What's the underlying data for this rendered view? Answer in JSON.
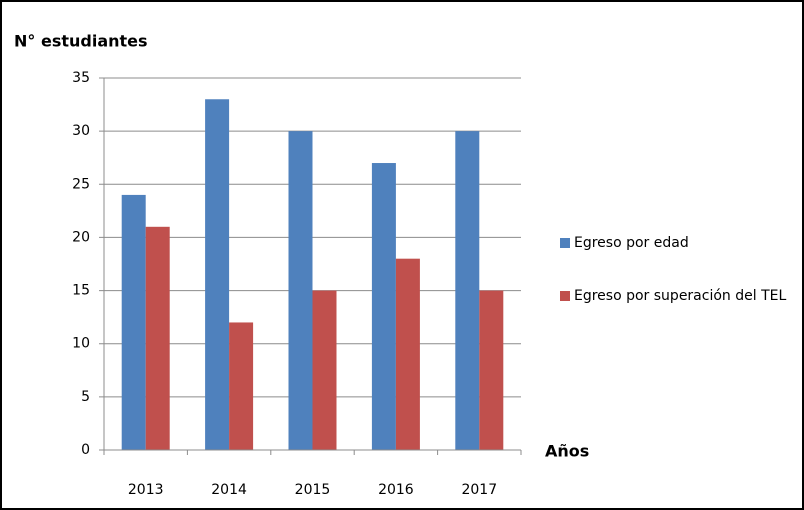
{
  "chart_data": {
    "type": "bar",
    "title": "N° estudiantes",
    "x_label": "Años",
    "categories": [
      "2013",
      "2014",
      "2015",
      "2016",
      "2017"
    ],
    "series": [
      {
        "name": "Egreso por edad",
        "color": "#4f81bd",
        "values": [
          24,
          33,
          30,
          27,
          30
        ]
      },
      {
        "name": "Egreso por superación del TEL",
        "color": "#c0504d",
        "values": [
          21,
          12,
          15,
          18,
          15
        ]
      }
    ],
    "ylim": [
      0,
      35
    ],
    "yticks": [
      0,
      5,
      10,
      15,
      20,
      25,
      30,
      35
    ],
    "grid": true,
    "legend": "right"
  }
}
